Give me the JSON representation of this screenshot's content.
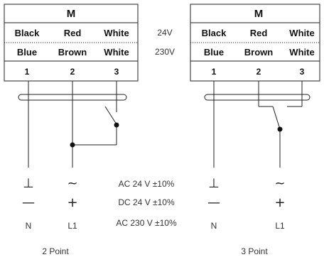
{
  "left_box": {
    "title": "M",
    "row_24v": [
      "Black",
      "Red",
      "White"
    ],
    "row_230v": [
      "Blue",
      "Brown",
      "White"
    ],
    "terminals": [
      "1",
      "2",
      "3"
    ]
  },
  "right_box": {
    "title": "M",
    "row_24v": [
      "Black",
      "Red",
      "White"
    ],
    "row_230v": [
      "Blue",
      "Brown",
      "White"
    ],
    "terminals": [
      "1",
      "2",
      "3"
    ]
  },
  "voltage_labels": {
    "v24": "24V",
    "v230": "230V"
  },
  "supply_specs": [
    "AC 24 V ±10%",
    "DC 24 V ±10%",
    "AC 230 V ±10%"
  ],
  "symbols": {
    "ground": "⊥",
    "ac": "~",
    "dc_neg": "—",
    "dc_pos": "+"
  },
  "terminal_labels": {
    "neutral": "N",
    "line": "L1"
  },
  "captions": {
    "left": "2 Point",
    "right": "3 Point"
  }
}
